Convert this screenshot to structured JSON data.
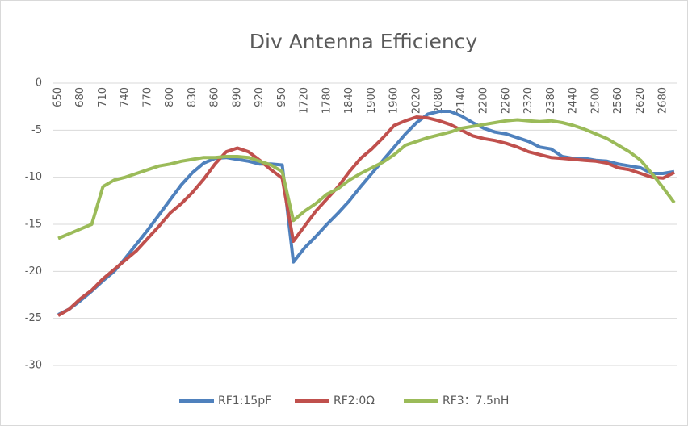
{
  "chart_data": {
    "type": "line",
    "title": "Div Antenna Efficiency",
    "categories": [
      650,
      null,
      680,
      null,
      710,
      null,
      740,
      null,
      770,
      null,
      800,
      null,
      830,
      null,
      860,
      null,
      890,
      null,
      920,
      null,
      950,
      null,
      1720,
      null,
      1780,
      null,
      1840,
      null,
      1900,
      null,
      1960,
      null,
      2020,
      null,
      2080,
      null,
      2140,
      null,
      2200,
      null,
      2260,
      null,
      2320,
      null,
      2380,
      null,
      2440,
      null,
      2500,
      null,
      2560,
      null,
      2620,
      null,
      2680,
      null
    ],
    "series": [
      {
        "name": "RF1:15pF",
        "color": "#4f81bd",
        "values": [
          -24.6,
          -24,
          -23.1,
          -22.1,
          -21,
          -20,
          -18.6,
          -17.1,
          -15.6,
          -14,
          -12.4,
          -10.8,
          -9.5,
          -8.5,
          -8,
          -7.9,
          -8.1,
          -8.3,
          -8.6,
          -8.6,
          -8.7,
          -19,
          -17.5,
          -16.3,
          -15,
          -13.8,
          -12.5,
          -11,
          -9.6,
          -8.2,
          -6.8,
          -5.4,
          -4.2,
          -3.3,
          -3,
          -3,
          -3.5,
          -4.2,
          -4.8,
          -5.2,
          -5.4,
          -5.8,
          -6.2,
          -6.8,
          -7,
          -7.8,
          -8,
          -8,
          -8.2,
          -8.3,
          -8.6,
          -8.8,
          -9,
          -9.6,
          -9.6,
          -9.4
        ]
      },
      {
        "name": "RF2:0Ω",
        "color": "#c0504d",
        "values": [
          -24.7,
          -24,
          -22.9,
          -22,
          -20.8,
          -19.8,
          -18.8,
          -17.8,
          -16.5,
          -15.2,
          -13.8,
          -12.8,
          -11.6,
          -10.2,
          -8.6,
          -7.3,
          -6.9,
          -7.3,
          -8.2,
          -9.2,
          -10.1,
          -16.8,
          -15.2,
          -13.6,
          -12.3,
          -11,
          -9.4,
          -8,
          -7,
          -5.8,
          -4.5,
          -4,
          -3.6,
          -3.7,
          -4,
          -4.4,
          -5,
          -5.6,
          -5.9,
          -6.1,
          -6.4,
          -6.8,
          -7.3,
          -7.6,
          -7.9,
          -8,
          -8.1,
          -8.2,
          -8.3,
          -8.5,
          -9,
          -9.2,
          -9.6,
          -10,
          -10.1,
          -9.5
        ]
      },
      {
        "name": "RF3：7.5nH",
        "color": "#9bbb59",
        "values": [
          -16.5,
          -16,
          -15.5,
          -15,
          -11,
          -10.3,
          -10,
          -9.6,
          -9.2,
          -8.8,
          -8.6,
          -8.3,
          -8.1,
          -7.9,
          -7.9,
          -7.8,
          -7.8,
          -7.9,
          -8.3,
          -8.7,
          -9.4,
          -14.6,
          -13.6,
          -12.8,
          -11.8,
          -11.2,
          -10.3,
          -9.6,
          -9,
          -8.4,
          -7.6,
          -6.6,
          -6.2,
          -5.8,
          -5.5,
          -5.2,
          -4.8,
          -4.6,
          -4.4,
          -4.2,
          -4,
          -3.9,
          -4,
          -4.1,
          -4,
          -4.2,
          -4.5,
          -4.9,
          -5.4,
          -5.9,
          -6.6,
          -7.3,
          -8.2,
          -9.6,
          -11.1,
          -12.7
        ]
      }
    ],
    "ylim": [
      -30,
      0
    ],
    "yticks": [
      0,
      -5,
      -10,
      -15,
      -20,
      -25,
      -30
    ],
    "grid": true,
    "legend": "bottom"
  }
}
